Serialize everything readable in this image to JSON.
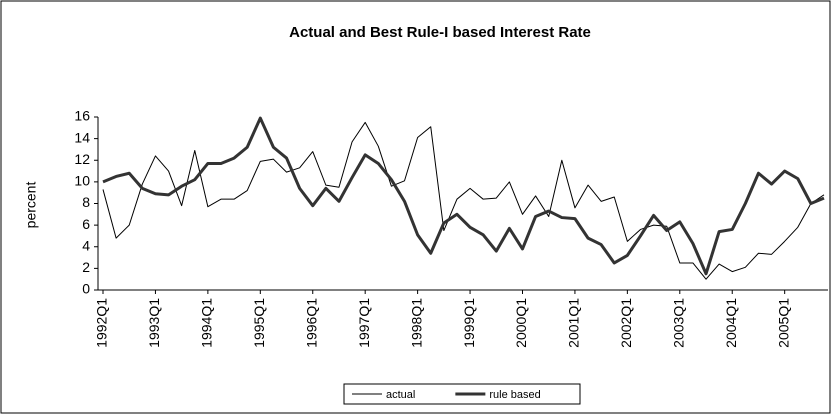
{
  "chart_data": {
    "type": "line",
    "title": "Actual and Best Rule-I based Interest Rate",
    "y_label": "percent",
    "categories": [
      "1992Q1",
      null,
      null,
      null,
      "1993Q1",
      null,
      null,
      null,
      "1994Q1",
      null,
      null,
      null,
      "1995Q1",
      null,
      null,
      null,
      "1996Q1",
      null,
      null,
      null,
      "1997Q1",
      null,
      null,
      null,
      "1998Q1",
      null,
      null,
      null,
      "1999Q1",
      null,
      null,
      null,
      "2000Q1",
      null,
      null,
      null,
      "2001Q1",
      null,
      null,
      null,
      "2002Q1",
      null,
      null,
      null,
      "2003Q1",
      null,
      null,
      null,
      "2004Q1",
      null,
      null,
      null,
      "2005Q1",
      null,
      null,
      null
    ],
    "series": [
      {
        "name": "actual",
        "color": "#000000",
        "line_width": 1,
        "values": [
          9.3,
          4.8,
          6.0,
          9.8,
          12.4,
          11.0,
          7.8,
          12.9,
          7.7,
          8.4,
          8.4,
          9.2,
          11.9,
          12.1,
          10.9,
          11.3,
          12.8,
          9.7,
          9.5,
          13.7,
          15.5,
          13.3,
          9.6,
          10.1,
          14.1,
          15.1,
          5.5,
          8.4,
          9.4,
          8.4,
          8.5,
          10.0,
          7.0,
          8.7,
          6.8,
          12.0,
          7.6,
          9.7,
          8.2,
          8.6,
          4.5,
          5.6,
          6.0,
          5.9,
          2.5,
          2.5,
          1.0,
          2.4,
          1.7,
          2.1,
          3.4,
          3.3,
          4.5,
          5.8,
          8.0,
          8.8
        ]
      },
      {
        "name": "rule based",
        "color": "#333333",
        "line_width": 3,
        "values": [
          10.0,
          10.5,
          10.8,
          9.4,
          8.9,
          8.8,
          9.6,
          10.2,
          11.7,
          11.7,
          12.2,
          13.2,
          15.9,
          13.2,
          12.2,
          9.4,
          7.8,
          9.4,
          8.2,
          10.4,
          12.5,
          11.7,
          10.2,
          8.2,
          5.1,
          3.4,
          6.2,
          7.0,
          5.8,
          5.1,
          3.6,
          5.7,
          3.8,
          6.8,
          7.3,
          6.7,
          6.6,
          4.8,
          4.2,
          2.5,
          3.2,
          5.0,
          6.9,
          5.5,
          6.3,
          4.3,
          1.5,
          5.4,
          5.6,
          8.0,
          10.8,
          9.8,
          11.0,
          10.3,
          8.0,
          8.5
        ]
      }
    ],
    "ylim": [
      0,
      16
    ],
    "yticks": [
      0,
      2,
      4,
      6,
      8,
      10,
      12,
      14,
      16
    ],
    "grid": false,
    "legend": "bottom"
  }
}
